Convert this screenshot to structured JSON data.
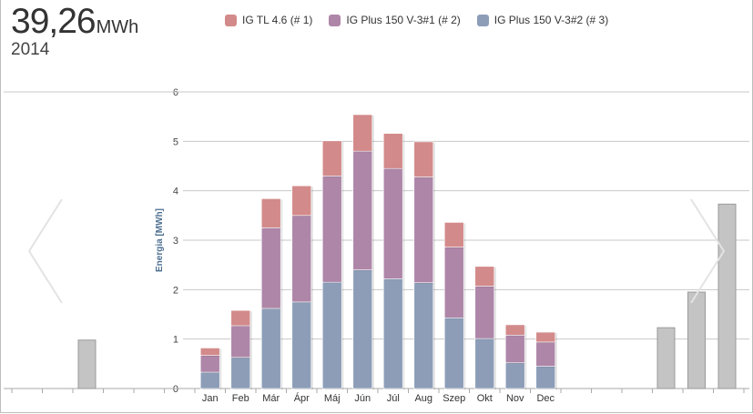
{
  "summary": {
    "total_value": "39,26",
    "total_unit": "MWh",
    "year": "2014"
  },
  "colors": {
    "series": [
      "#8d9db8",
      "#ae86a8",
      "#d38a8a"
    ],
    "context_bar": "#c4c4c4",
    "grid": "#c8c8c8",
    "axis_label": "#4d6f91"
  },
  "icons": {
    "prev": "chevron-left-icon",
    "next": "chevron-right-icon"
  },
  "chart_data": {
    "type": "bar",
    "stacked": true,
    "title": "",
    "xlabel": "",
    "ylabel": "Energia [MWh]",
    "ylim": [
      0,
      6
    ],
    "yticks": [
      "0",
      "1",
      "2",
      "3",
      "4",
      "5",
      "6"
    ],
    "grid": true,
    "legend_position": "top",
    "categories": [
      "Jan",
      "Feb",
      "Már",
      "Ápr",
      "Máj",
      "Jún",
      "Júl",
      "Aug",
      "Szep",
      "Okt",
      "Nov",
      "Dec"
    ],
    "series": [
      {
        "name": "IG Plus 150 V-3#2 (# 3)",
        "values": [
          0.33,
          0.63,
          1.62,
          1.75,
          2.15,
          2.4,
          2.22,
          2.14,
          1.43,
          1.01,
          0.52,
          0.45
        ]
      },
      {
        "name": "IG Plus 150 V-3#1 (# 2)",
        "values": [
          0.34,
          0.64,
          1.63,
          1.75,
          2.15,
          2.4,
          2.23,
          2.14,
          1.43,
          1.06,
          0.56,
          0.49
        ]
      },
      {
        "name": "IG TL 4.6 (# 1)",
        "values": [
          0.15,
          0.31,
          0.59,
          0.6,
          0.71,
          0.74,
          0.71,
          0.71,
          0.5,
          0.4,
          0.21,
          0.2
        ]
      }
    ],
    "context_bars_left": [
      0.98
    ],
    "context_bars_right": [
      1.23,
      1.95,
      3.73
    ]
  }
}
